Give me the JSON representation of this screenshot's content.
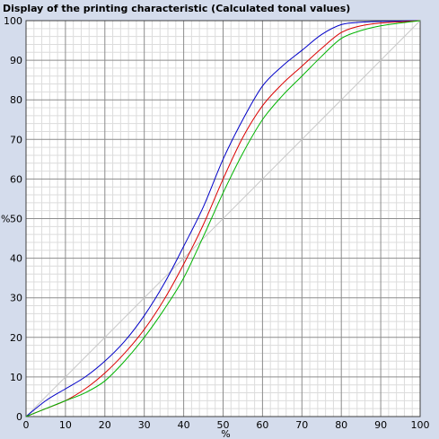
{
  "title": "Display of the printing characteristic (Calculated tonal values)",
  "colors": {
    "background": "#d4dcec",
    "plot_background": "#ffffff",
    "major_grid": "#8c8c8c",
    "minor_grid": "#dcdcdc",
    "reference_line": "#c8c8c8"
  },
  "chart_data": {
    "type": "line",
    "title": "Display of the printing characteristic (Calculated tonal values)",
    "xlabel": "%",
    "ylabel": "%",
    "xlim": [
      0,
      100
    ],
    "ylim": [
      0,
      100
    ],
    "x_ticks": [
      0,
      10,
      20,
      30,
      40,
      50,
      60,
      70,
      80,
      90,
      100
    ],
    "y_ticks": [
      0,
      10,
      20,
      30,
      40,
      50,
      60,
      70,
      80,
      90,
      100
    ],
    "grid": true,
    "legend": "none",
    "reference_diagonal": {
      "x": [
        0,
        100
      ],
      "y": [
        0,
        100
      ],
      "color": "#c8c8c8"
    },
    "series": [
      {
        "color": "#0000c8",
        "x": [
          0,
          5,
          10,
          15,
          20,
          25,
          30,
          35,
          40,
          45,
          50,
          55,
          60,
          65,
          70,
          75,
          80,
          85,
          90,
          95,
          100
        ],
        "y": [
          0,
          4,
          7,
          10,
          14,
          19,
          25.5,
          33.5,
          43,
          53,
          65,
          75,
          83.5,
          88.5,
          92.5,
          96.5,
          99,
          99.6,
          99.8,
          99.9,
          100
        ]
      },
      {
        "color": "#dc0000",
        "x": [
          0,
          5,
          10,
          15,
          20,
          25,
          30,
          35,
          40,
          45,
          50,
          55,
          60,
          65,
          70,
          75,
          80,
          85,
          90,
          95,
          100
        ],
        "y": [
          0,
          2,
          4,
          7,
          11,
          16,
          22,
          29.5,
          38.5,
          48.5,
          60,
          70.5,
          78.5,
          84,
          88.5,
          93,
          97,
          98.7,
          99.4,
          99.7,
          100
        ]
      },
      {
        "color": "#00b400",
        "x": [
          0,
          5,
          10,
          15,
          20,
          25,
          30,
          35,
          40,
          45,
          50,
          55,
          60,
          65,
          70,
          75,
          80,
          85,
          90,
          95,
          100
        ],
        "y": [
          0,
          2,
          4,
          6,
          9,
          14,
          20,
          27,
          35,
          45.5,
          56.5,
          66.5,
          75,
          81,
          86,
          91,
          95.5,
          97.5,
          98.7,
          99.4,
          100
        ]
      }
    ]
  }
}
